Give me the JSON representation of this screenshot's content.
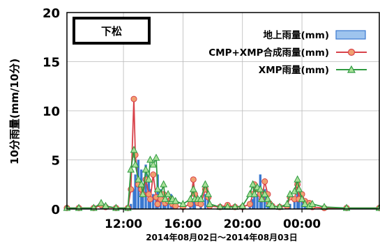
{
  "chart_data": {
    "type": "bar+line",
    "station_label": "下松",
    "ylabel": "10分雨量(mm/10分)",
    "xlabel": "2014年08月02日～2014年08月03日",
    "ylim": [
      0,
      20
    ],
    "yticks": [
      "0",
      "5",
      "10",
      "15",
      "20"
    ],
    "x_tick_labels": [
      {
        "label": "12:00",
        "hour": 12
      },
      {
        "label": "16:00",
        "hour": 16
      },
      {
        "label": "20:00",
        "hour": 20
      },
      {
        "label": "00:00",
        "hour": 24
      }
    ],
    "x_range_hours": [
      8.2,
      29.2
    ],
    "grid": true,
    "legend_position": "top-right",
    "colors": {
      "bar": "#3a78d0",
      "bar_fill": "#9ec4ee",
      "cmp": "#d8424a",
      "cmp_marker": "#f0a070",
      "xmp": "#2e9a40",
      "xmp_marker": "#a8e098"
    },
    "series": [
      {
        "name": "地上雨量(mm)",
        "type": "bar",
        "points": [
          [
            10.5,
            0.4
          ],
          [
            10.7,
            0.5
          ],
          [
            10.8,
            0.3
          ],
          [
            12.5,
            0.5
          ],
          [
            12.7,
            2.0
          ],
          [
            12.8,
            3.5
          ],
          [
            13.0,
            5.0
          ],
          [
            13.2,
            4.0
          ],
          [
            13.3,
            2.5
          ],
          [
            13.5,
            4.5
          ],
          [
            13.7,
            3.0
          ],
          [
            13.8,
            2.0
          ],
          [
            14.0,
            1.5
          ],
          [
            14.2,
            1.0
          ],
          [
            14.3,
            3.5
          ],
          [
            14.5,
            2.0
          ],
          [
            14.7,
            1.0
          ],
          [
            14.8,
            0.5
          ],
          [
            15.0,
            0.5
          ],
          [
            15.2,
            1.5
          ],
          [
            15.3,
            1.0
          ],
          [
            15.5,
            0.5
          ],
          [
            16.5,
            0.5
          ],
          [
            16.7,
            1.0
          ],
          [
            16.8,
            0.7
          ],
          [
            17.2,
            0.5
          ],
          [
            17.5,
            1.5
          ],
          [
            17.7,
            1.2
          ],
          [
            17.8,
            0.5
          ],
          [
            18.8,
            0.3
          ],
          [
            19.0,
            0.3
          ],
          [
            20.5,
            0.5
          ],
          [
            20.7,
            1.0
          ],
          [
            20.8,
            2.0
          ],
          [
            21.0,
            1.5
          ],
          [
            21.2,
            3.5
          ],
          [
            21.3,
            1.0
          ],
          [
            21.5,
            2.0
          ],
          [
            21.7,
            1.0
          ],
          [
            21.8,
            0.5
          ],
          [
            22.0,
            0.5
          ],
          [
            23.0,
            0.3
          ],
          [
            23.2,
            0.5
          ],
          [
            23.5,
            1.0
          ],
          [
            23.7,
            2.0
          ],
          [
            23.8,
            1.5
          ],
          [
            24.0,
            1.0
          ],
          [
            24.2,
            0.5
          ],
          [
            24.5,
            0.3
          ],
          [
            24.7,
            0.3
          ]
        ]
      },
      {
        "name": "CMP+XMP合成雨量(mm)",
        "type": "line",
        "points": [
          [
            8.2,
            0.1
          ],
          [
            9.0,
            0.1
          ],
          [
            10.0,
            0.1
          ],
          [
            10.5,
            0.4
          ],
          [
            10.8,
            0.2
          ],
          [
            11.5,
            0.1
          ],
          [
            12.3,
            0.1
          ],
          [
            12.5,
            2.0
          ],
          [
            12.7,
            11.2
          ],
          [
            12.8,
            5.5
          ],
          [
            13.0,
            2.5
          ],
          [
            13.2,
            2.0
          ],
          [
            13.3,
            1.5
          ],
          [
            13.5,
            3.0
          ],
          [
            13.7,
            1.5
          ],
          [
            13.8,
            1.0
          ],
          [
            14.0,
            3.5
          ],
          [
            14.2,
            1.2
          ],
          [
            14.3,
            0.5
          ],
          [
            14.5,
            1.0
          ],
          [
            14.7,
            1.5
          ],
          [
            14.8,
            0.6
          ],
          [
            15.0,
            0.8
          ],
          [
            15.2,
            1.0
          ],
          [
            15.3,
            0.5
          ],
          [
            15.5,
            0.3
          ],
          [
            16.0,
            0.2
          ],
          [
            16.5,
            0.5
          ],
          [
            16.7,
            3.0
          ],
          [
            16.8,
            1.5
          ],
          [
            17.0,
            0.6
          ],
          [
            17.2,
            0.5
          ],
          [
            17.5,
            2.0
          ],
          [
            17.7,
            1.2
          ],
          [
            17.8,
            0.3
          ],
          [
            18.5,
            0.2
          ],
          [
            19.0,
            0.4
          ],
          [
            19.5,
            0.2
          ],
          [
            20.0,
            0.2
          ],
          [
            20.5,
            0.5
          ],
          [
            20.7,
            1.5
          ],
          [
            20.8,
            2.5
          ],
          [
            21.0,
            2.0
          ],
          [
            21.2,
            1.5
          ],
          [
            21.3,
            1.0
          ],
          [
            21.5,
            2.8
          ],
          [
            21.7,
            1.5
          ],
          [
            21.8,
            0.6
          ],
          [
            22.0,
            0.3
          ],
          [
            22.5,
            0.2
          ],
          [
            23.0,
            0.3
          ],
          [
            23.2,
            1.2
          ],
          [
            23.5,
            1.0
          ],
          [
            23.7,
            2.5
          ],
          [
            23.8,
            1.0
          ],
          [
            24.0,
            1.5
          ],
          [
            24.2,
            0.8
          ],
          [
            24.5,
            0.6
          ],
          [
            24.7,
            0.2
          ],
          [
            25.5,
            0.1
          ],
          [
            27.0,
            0.1
          ],
          [
            29.2,
            0.1
          ]
        ]
      },
      {
        "name": "XMP雨量(mm)",
        "type": "line",
        "points": [
          [
            8.2,
            0.1
          ],
          [
            9.0,
            0.1
          ],
          [
            10.0,
            0.1
          ],
          [
            10.5,
            0.6
          ],
          [
            10.8,
            0.3
          ],
          [
            11.5,
            0.1
          ],
          [
            12.3,
            0.1
          ],
          [
            12.5,
            4.0
          ],
          [
            12.7,
            6.0
          ],
          [
            12.8,
            4.5
          ],
          [
            13.0,
            3.0
          ],
          [
            13.2,
            2.5
          ],
          [
            13.3,
            1.5
          ],
          [
            13.5,
            4.0
          ],
          [
            13.7,
            3.0
          ],
          [
            13.8,
            5.0
          ],
          [
            14.0,
            4.5
          ],
          [
            14.2,
            5.2
          ],
          [
            14.3,
            2.0
          ],
          [
            14.5,
            1.5
          ],
          [
            14.7,
            2.5
          ],
          [
            14.8,
            1.0
          ],
          [
            15.0,
            1.5
          ],
          [
            15.2,
            0.8
          ],
          [
            15.3,
            1.0
          ],
          [
            15.5,
            0.8
          ],
          [
            16.0,
            0.5
          ],
          [
            16.5,
            1.0
          ],
          [
            16.7,
            2.0
          ],
          [
            16.8,
            1.0
          ],
          [
            17.0,
            1.0
          ],
          [
            17.2,
            1.0
          ],
          [
            17.5,
            2.5
          ],
          [
            17.7,
            1.5
          ],
          [
            17.8,
            0.5
          ],
          [
            18.5,
            0.2
          ],
          [
            19.0,
            0.2
          ],
          [
            19.5,
            0.2
          ],
          [
            20.0,
            0.3
          ],
          [
            20.5,
            1.5
          ],
          [
            20.7,
            2.5
          ],
          [
            20.8,
            1.5
          ],
          [
            21.0,
            2.2
          ],
          [
            21.2,
            2.0
          ],
          [
            21.3,
            1.0
          ],
          [
            21.5,
            1.5
          ],
          [
            21.7,
            1.0
          ],
          [
            21.8,
            0.5
          ],
          [
            22.0,
            0.3
          ],
          [
            22.5,
            0.2
          ],
          [
            23.0,
            0.5
          ],
          [
            23.2,
            1.5
          ],
          [
            23.5,
            1.8
          ],
          [
            23.7,
            3.0
          ],
          [
            23.8,
            2.0
          ],
          [
            24.0,
            1.0
          ],
          [
            24.2,
            0.5
          ],
          [
            24.5,
            0.3
          ],
          [
            24.7,
            0.5
          ],
          [
            25.5,
            0.2
          ],
          [
            27.0,
            0.1
          ],
          [
            29.2,
            0.1
          ]
        ]
      }
    ]
  }
}
